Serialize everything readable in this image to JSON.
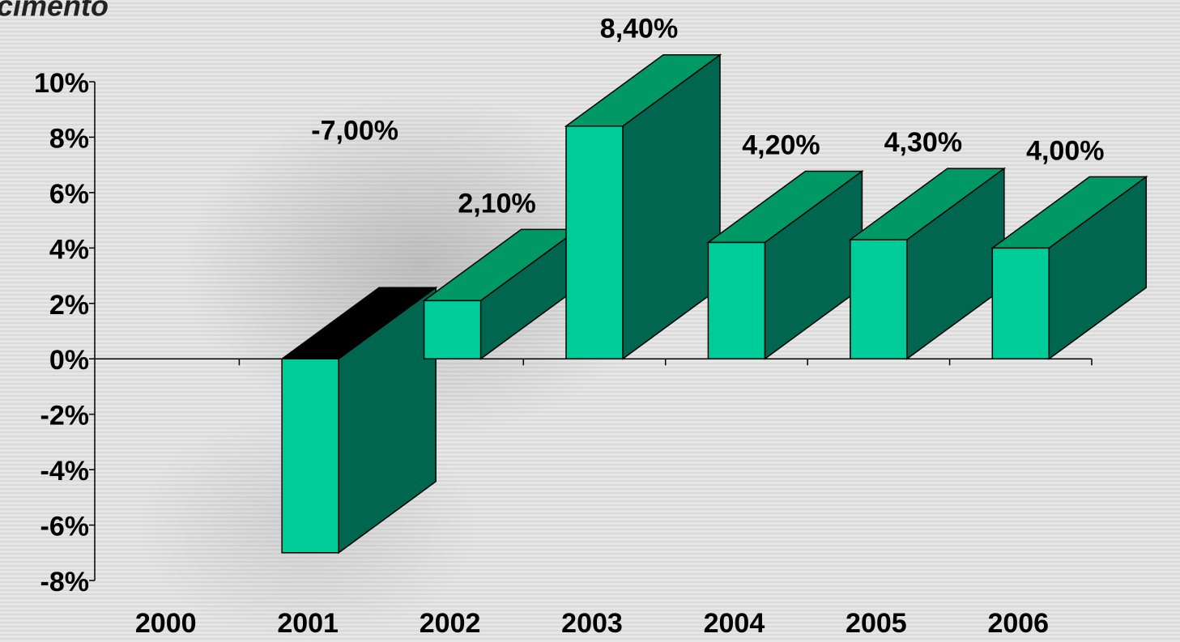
{
  "chart_data": {
    "type": "bar3d",
    "title": "cimento",
    "categories": [
      "2000",
      "2001",
      "2002",
      "2003",
      "2004",
      "2005",
      "2006"
    ],
    "values": [
      null,
      -7.0,
      2.1,
      8.4,
      4.2,
      4.3,
      4.0
    ],
    "value_labels": [
      null,
      "-7,00%",
      "2,10%",
      "8,40%",
      "4,20%",
      "4,30%",
      "4,00%"
    ],
    "color": "#00cc99",
    "ylim": [
      -8,
      10
    ],
    "yticks": [
      {
        "value": -8,
        "label": "-8%"
      },
      {
        "value": -6,
        "label": "-6%"
      },
      {
        "value": -4,
        "label": "-4%"
      },
      {
        "value": -2,
        "label": "-2%"
      },
      {
        "value": 0,
        "label": "0%"
      },
      {
        "value": 2,
        "label": "2%"
      },
      {
        "value": 4,
        "label": "4%"
      },
      {
        "value": 6,
        "label": "6%"
      },
      {
        "value": 8,
        "label": "8%"
      },
      {
        "value": 10,
        "label": "10%"
      }
    ]
  }
}
